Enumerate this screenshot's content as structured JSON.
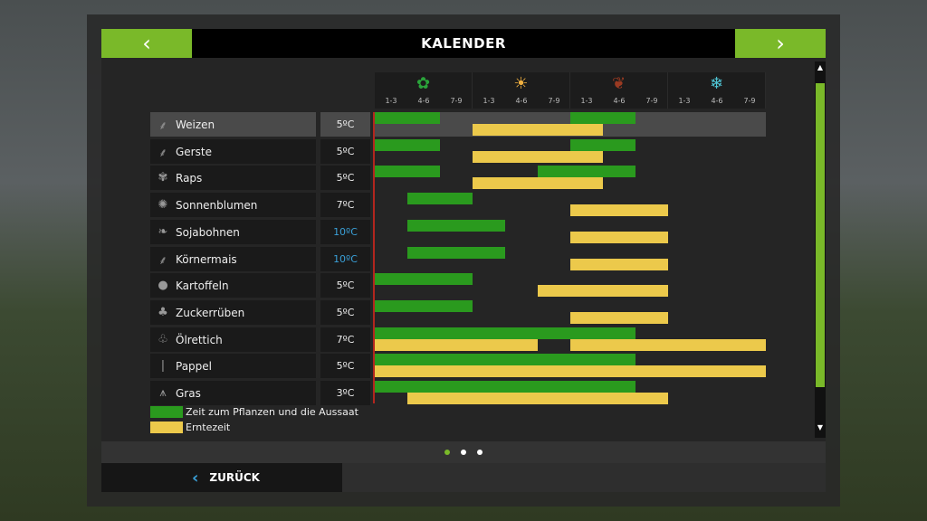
{
  "header": {
    "title": "KALENDER",
    "prev_icon": "chevron-left-icon",
    "next_icon": "chevron-right-icon"
  },
  "seasons": [
    {
      "name": "spring",
      "icon": "flower-icon",
      "glyph": "✿",
      "color": "#2aa33a"
    },
    {
      "name": "summer",
      "icon": "sun-icon",
      "glyph": "☀",
      "color": "#f0b040"
    },
    {
      "name": "autumn",
      "icon": "leaf-icon",
      "glyph": "❦",
      "color": "#9a3a22"
    },
    {
      "name": "winter",
      "icon": "snowflake-icon",
      "glyph": "❄",
      "color": "#50c8d8"
    }
  ],
  "period_labels": [
    "1-3",
    "4-6",
    "7-9"
  ],
  "colors": {
    "accent": "#7ab929",
    "plant": "#2a9a1e",
    "harvest": "#ecc94b",
    "warm_temp": "#3aa0d8"
  },
  "chart_data": {
    "type": "gantt",
    "periods": [
      "1-3",
      "4-6",
      "7-9",
      "1-3",
      "4-6",
      "7-9",
      "1-3",
      "4-6",
      "7-9",
      "1-3",
      "4-6",
      "7-9"
    ],
    "series_names": [
      "Zeit zum Pflanzen und die Aussaat",
      "Erntezeit"
    ],
    "crops": [
      {
        "name": "Weizen",
        "icon": "wheat-icon",
        "glyph": "⸙",
        "temp": "5ºC",
        "highlight": false,
        "selected": true,
        "plant": [
          [
            0,
            2
          ],
          [
            6,
            8
          ]
        ],
        "harvest": [
          [
            3,
            7
          ]
        ]
      },
      {
        "name": "Gerste",
        "icon": "barley-icon",
        "glyph": "⸙",
        "temp": "5ºC",
        "highlight": false,
        "plant": [
          [
            0,
            2
          ],
          [
            6,
            8
          ]
        ],
        "harvest": [
          [
            3,
            7
          ]
        ]
      },
      {
        "name": "Raps",
        "icon": "canola-icon",
        "glyph": "✾",
        "temp": "5ºC",
        "highlight": false,
        "plant": [
          [
            0,
            2
          ],
          [
            5,
            8
          ]
        ],
        "harvest": [
          [
            3,
            7
          ]
        ]
      },
      {
        "name": "Sonnenblumen",
        "icon": "sunflower-icon",
        "glyph": "✺",
        "temp": "7ºC",
        "highlight": false,
        "plant": [
          [
            1,
            3
          ]
        ],
        "harvest": [
          [
            6,
            9
          ]
        ]
      },
      {
        "name": "Sojabohnen",
        "icon": "soybean-icon",
        "glyph": "❧",
        "temp": "10ºC",
        "highlight": true,
        "plant": [
          [
            1,
            4
          ]
        ],
        "harvest": [
          [
            6,
            9
          ]
        ]
      },
      {
        "name": "Körnermais",
        "icon": "corn-icon",
        "glyph": "⸙",
        "temp": "10ºC",
        "highlight": true,
        "plant": [
          [
            1,
            4
          ]
        ],
        "harvest": [
          [
            6,
            9
          ]
        ]
      },
      {
        "name": "Kartoffeln",
        "icon": "potato-icon",
        "glyph": "●",
        "temp": "5ºC",
        "highlight": false,
        "plant": [
          [
            0,
            3
          ]
        ],
        "harvest": [
          [
            5,
            9
          ]
        ]
      },
      {
        "name": "Zuckerrüben",
        "icon": "sugarbeet-icon",
        "glyph": "♣",
        "temp": "5ºC",
        "highlight": false,
        "plant": [
          [
            0,
            3
          ]
        ],
        "harvest": [
          [
            6,
            9
          ]
        ]
      },
      {
        "name": "Ölrettich",
        "icon": "radish-icon",
        "glyph": "♧",
        "temp": "7ºC",
        "highlight": false,
        "plant": [
          [
            0,
            8
          ]
        ],
        "harvest": [
          [
            0,
            5
          ],
          [
            6,
            12
          ]
        ]
      },
      {
        "name": "Pappel",
        "icon": "poplar-icon",
        "glyph": "❘",
        "temp": "5ºC",
        "highlight": false,
        "plant": [
          [
            0,
            8
          ]
        ],
        "harvest": [
          [
            0,
            12
          ]
        ]
      },
      {
        "name": "Gras",
        "icon": "grass-icon",
        "glyph": "⩚",
        "temp": "3ºC",
        "highlight": false,
        "plant": [
          [
            0,
            8
          ]
        ],
        "harvest": [
          [
            1,
            9
          ]
        ]
      }
    ]
  },
  "legend": {
    "plant": "Zeit zum Pflanzen und die Aussaat",
    "harvest": "Erntezeit"
  },
  "pagination": {
    "pages": 3,
    "current": 1
  },
  "footer": {
    "back_label": "ZURÜCK"
  }
}
